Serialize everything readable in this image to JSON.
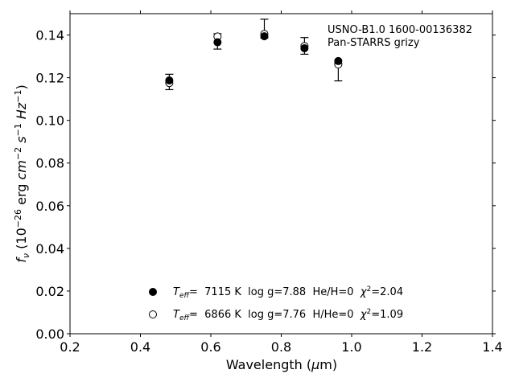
{
  "chart_data": {
    "type": "scatter",
    "annotation": [
      "USNO-B1.0 1600-00136382",
      "Pan-STARRS grizy"
    ],
    "xlabel": {
      "pre": "Wavelength (",
      "mu": "μ",
      "post": "m)"
    },
    "ylabel": {
      "f": "f",
      "sub": "ν",
      "pre": " (10",
      "exp": "−26",
      "mid": " erg ",
      "cm": "cm",
      "cmexp": "−2",
      "s": " s",
      "sexp": "−1",
      "hz": " Hz",
      "hzexp": "−1",
      "close": ")"
    },
    "xlim": [
      0.2,
      1.4
    ],
    "ylim": [
      0.0,
      0.15
    ],
    "xticks": [
      0.2,
      0.4,
      0.6,
      0.8,
      1.0,
      1.2,
      1.4
    ],
    "xtick_labels": [
      "0.2",
      "0.4",
      "0.6",
      "0.8",
      "1.0",
      "1.2",
      "1.4"
    ],
    "yticks": [
      0.0,
      0.02,
      0.04,
      0.06,
      0.08,
      0.1,
      0.12,
      0.14
    ],
    "ytick_labels": [
      "0.00",
      "0.02",
      "0.04",
      "0.06",
      "0.08",
      "0.10",
      "0.12",
      "0.14"
    ],
    "observed": {
      "x": [
        0.482,
        0.619,
        0.752,
        0.866,
        0.962
      ],
      "y": [
        0.118,
        0.137,
        0.143,
        0.1349,
        0.1226
      ],
      "yerr": [
        0.0036,
        0.0036,
        0.0044,
        0.0039,
        0.0041
      ]
    },
    "series": [
      {
        "marker": "filled",
        "x": [
          0.482,
          0.619,
          0.752,
          0.866,
          0.962
        ],
        "y": [
          0.1187,
          0.1366,
          0.1394,
          0.1338,
          0.1278
        ],
        "legend": {
          "t": "T",
          "tsub": "eff",
          "eq": "=  7115 K  log g=7.88  He/H=0  ",
          "chi": "χ",
          "chiexp": "2",
          "val": "=2.04"
        }
      },
      {
        "marker": "open",
        "x": [
          0.482,
          0.619,
          0.752,
          0.866,
          0.962
        ],
        "y": [
          0.1175,
          0.1393,
          0.1405,
          0.1348,
          0.1262
        ],
        "legend": {
          "t": "T",
          "tsub": "eff",
          "eq": "=  6866 K  log g=7.76  H/He=0  ",
          "chi": "χ",
          "chiexp": "2",
          "val": "=1.09"
        }
      }
    ],
    "colors": {
      "marker": "#000000",
      "axis": "#000000",
      "background": "#ffffff"
    }
  }
}
